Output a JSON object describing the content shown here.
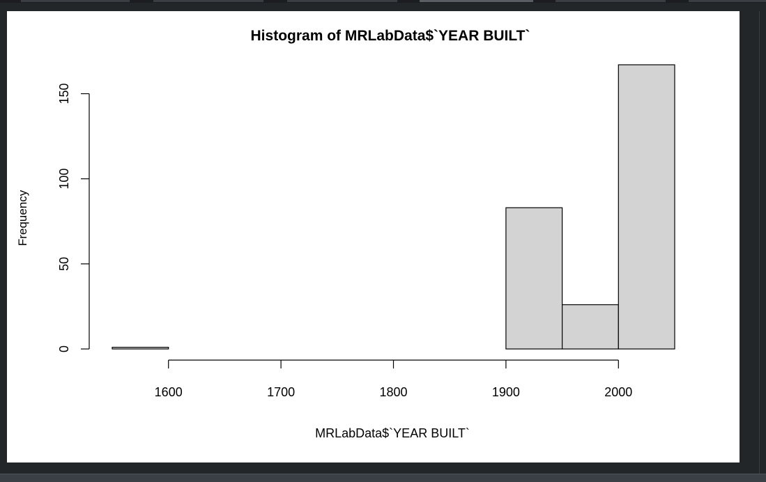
{
  "window": {
    "tabs": [
      "",
      "",
      "",
      "",
      "",
      ""
    ],
    "active_tab_index": 3
  },
  "colors": {
    "background": "#232629",
    "plot_background": "#ffffff",
    "bar_fill": "#d3d3d3",
    "bar_stroke": "#000000",
    "status_bar": "#3b4047"
  },
  "chart_data": {
    "type": "bar",
    "title": "Histogram of MRLabData$`YEAR BUILT`",
    "xlabel": "MRLabData$`YEAR BUILT`",
    "ylabel": "Frequency",
    "bins": [
      {
        "start": 1550,
        "end": 1600,
        "count": 1
      },
      {
        "start": 1600,
        "end": 1650,
        "count": 0
      },
      {
        "start": 1650,
        "end": 1700,
        "count": 0
      },
      {
        "start": 1700,
        "end": 1750,
        "count": 0
      },
      {
        "start": 1750,
        "end": 1800,
        "count": 0
      },
      {
        "start": 1800,
        "end": 1850,
        "count": 0
      },
      {
        "start": 1850,
        "end": 1900,
        "count": 0
      },
      {
        "start": 1900,
        "end": 1950,
        "count": 83
      },
      {
        "start": 1950,
        "end": 2000,
        "count": 26
      },
      {
        "start": 2000,
        "end": 2050,
        "count": 167
      }
    ],
    "x_ticks": [
      1600,
      1700,
      1800,
      1900,
      2000
    ],
    "y_ticks": [
      0,
      50,
      100,
      150
    ],
    "xlim": [
      1550,
      2050
    ],
    "ylim": [
      0,
      167
    ],
    "grid": false
  }
}
